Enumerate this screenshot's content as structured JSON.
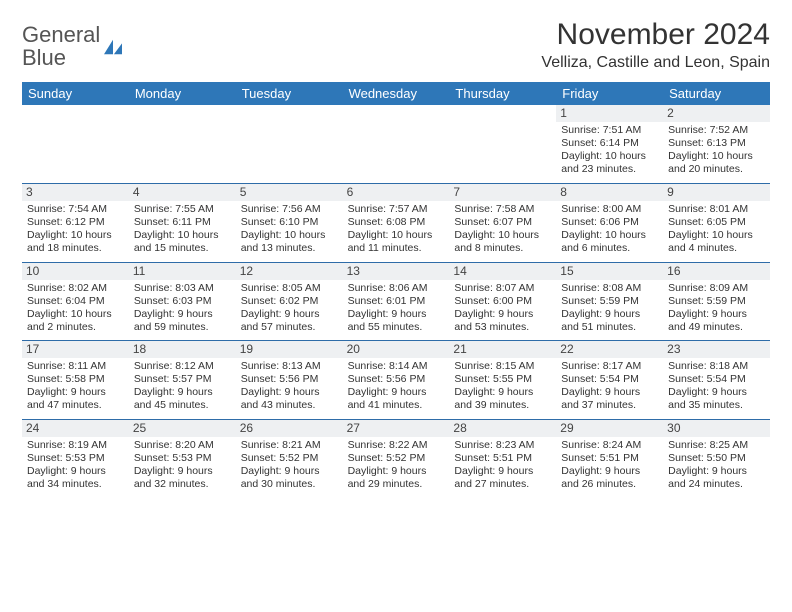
{
  "logo": {
    "word1": "General",
    "word2": "Blue"
  },
  "title": "November 2024",
  "location": "Velliza, Castille and Leon, Spain",
  "colors": {
    "header_bg": "#2e77b8",
    "header_text": "#ffffff",
    "border": "#2e6ca8",
    "daynum_bg": "#eef0f2",
    "text": "#333333",
    "logo_gray": "#555555",
    "logo_blue": "#2e77b8",
    "page_bg": "#ffffff"
  },
  "typography": {
    "title_fontsize": 30,
    "location_fontsize": 16,
    "header_fontsize": 13,
    "cell_fontsize": 10.5,
    "daynum_fontsize": 12,
    "logo_fontsize": 22
  },
  "day_names": [
    "Sunday",
    "Monday",
    "Tuesday",
    "Wednesday",
    "Thursday",
    "Friday",
    "Saturday"
  ],
  "weeks": [
    [
      null,
      null,
      null,
      null,
      null,
      {
        "n": "1",
        "sr": "Sunrise: 7:51 AM",
        "ss": "Sunset: 6:14 PM",
        "d1": "Daylight: 10 hours",
        "d2": "and 23 minutes."
      },
      {
        "n": "2",
        "sr": "Sunrise: 7:52 AM",
        "ss": "Sunset: 6:13 PM",
        "d1": "Daylight: 10 hours",
        "d2": "and 20 minutes."
      }
    ],
    [
      {
        "n": "3",
        "sr": "Sunrise: 7:54 AM",
        "ss": "Sunset: 6:12 PM",
        "d1": "Daylight: 10 hours",
        "d2": "and 18 minutes."
      },
      {
        "n": "4",
        "sr": "Sunrise: 7:55 AM",
        "ss": "Sunset: 6:11 PM",
        "d1": "Daylight: 10 hours",
        "d2": "and 15 minutes."
      },
      {
        "n": "5",
        "sr": "Sunrise: 7:56 AM",
        "ss": "Sunset: 6:10 PM",
        "d1": "Daylight: 10 hours",
        "d2": "and 13 minutes."
      },
      {
        "n": "6",
        "sr": "Sunrise: 7:57 AM",
        "ss": "Sunset: 6:08 PM",
        "d1": "Daylight: 10 hours",
        "d2": "and 11 minutes."
      },
      {
        "n": "7",
        "sr": "Sunrise: 7:58 AM",
        "ss": "Sunset: 6:07 PM",
        "d1": "Daylight: 10 hours",
        "d2": "and 8 minutes."
      },
      {
        "n": "8",
        "sr": "Sunrise: 8:00 AM",
        "ss": "Sunset: 6:06 PM",
        "d1": "Daylight: 10 hours",
        "d2": "and 6 minutes."
      },
      {
        "n": "9",
        "sr": "Sunrise: 8:01 AM",
        "ss": "Sunset: 6:05 PM",
        "d1": "Daylight: 10 hours",
        "d2": "and 4 minutes."
      }
    ],
    [
      {
        "n": "10",
        "sr": "Sunrise: 8:02 AM",
        "ss": "Sunset: 6:04 PM",
        "d1": "Daylight: 10 hours",
        "d2": "and 2 minutes."
      },
      {
        "n": "11",
        "sr": "Sunrise: 8:03 AM",
        "ss": "Sunset: 6:03 PM",
        "d1": "Daylight: 9 hours",
        "d2": "and 59 minutes."
      },
      {
        "n": "12",
        "sr": "Sunrise: 8:05 AM",
        "ss": "Sunset: 6:02 PM",
        "d1": "Daylight: 9 hours",
        "d2": "and 57 minutes."
      },
      {
        "n": "13",
        "sr": "Sunrise: 8:06 AM",
        "ss": "Sunset: 6:01 PM",
        "d1": "Daylight: 9 hours",
        "d2": "and 55 minutes."
      },
      {
        "n": "14",
        "sr": "Sunrise: 8:07 AM",
        "ss": "Sunset: 6:00 PM",
        "d1": "Daylight: 9 hours",
        "d2": "and 53 minutes."
      },
      {
        "n": "15",
        "sr": "Sunrise: 8:08 AM",
        "ss": "Sunset: 5:59 PM",
        "d1": "Daylight: 9 hours",
        "d2": "and 51 minutes."
      },
      {
        "n": "16",
        "sr": "Sunrise: 8:09 AM",
        "ss": "Sunset: 5:59 PM",
        "d1": "Daylight: 9 hours",
        "d2": "and 49 minutes."
      }
    ],
    [
      {
        "n": "17",
        "sr": "Sunrise: 8:11 AM",
        "ss": "Sunset: 5:58 PM",
        "d1": "Daylight: 9 hours",
        "d2": "and 47 minutes."
      },
      {
        "n": "18",
        "sr": "Sunrise: 8:12 AM",
        "ss": "Sunset: 5:57 PM",
        "d1": "Daylight: 9 hours",
        "d2": "and 45 minutes."
      },
      {
        "n": "19",
        "sr": "Sunrise: 8:13 AM",
        "ss": "Sunset: 5:56 PM",
        "d1": "Daylight: 9 hours",
        "d2": "and 43 minutes."
      },
      {
        "n": "20",
        "sr": "Sunrise: 8:14 AM",
        "ss": "Sunset: 5:56 PM",
        "d1": "Daylight: 9 hours",
        "d2": "and 41 minutes."
      },
      {
        "n": "21",
        "sr": "Sunrise: 8:15 AM",
        "ss": "Sunset: 5:55 PM",
        "d1": "Daylight: 9 hours",
        "d2": "and 39 minutes."
      },
      {
        "n": "22",
        "sr": "Sunrise: 8:17 AM",
        "ss": "Sunset: 5:54 PM",
        "d1": "Daylight: 9 hours",
        "d2": "and 37 minutes."
      },
      {
        "n": "23",
        "sr": "Sunrise: 8:18 AM",
        "ss": "Sunset: 5:54 PM",
        "d1": "Daylight: 9 hours",
        "d2": "and 35 minutes."
      }
    ],
    [
      {
        "n": "24",
        "sr": "Sunrise: 8:19 AM",
        "ss": "Sunset: 5:53 PM",
        "d1": "Daylight: 9 hours",
        "d2": "and 34 minutes."
      },
      {
        "n": "25",
        "sr": "Sunrise: 8:20 AM",
        "ss": "Sunset: 5:53 PM",
        "d1": "Daylight: 9 hours",
        "d2": "and 32 minutes."
      },
      {
        "n": "26",
        "sr": "Sunrise: 8:21 AM",
        "ss": "Sunset: 5:52 PM",
        "d1": "Daylight: 9 hours",
        "d2": "and 30 minutes."
      },
      {
        "n": "27",
        "sr": "Sunrise: 8:22 AM",
        "ss": "Sunset: 5:52 PM",
        "d1": "Daylight: 9 hours",
        "d2": "and 29 minutes."
      },
      {
        "n": "28",
        "sr": "Sunrise: 8:23 AM",
        "ss": "Sunset: 5:51 PM",
        "d1": "Daylight: 9 hours",
        "d2": "and 27 minutes."
      },
      {
        "n": "29",
        "sr": "Sunrise: 8:24 AM",
        "ss": "Sunset: 5:51 PM",
        "d1": "Daylight: 9 hours",
        "d2": "and 26 minutes."
      },
      {
        "n": "30",
        "sr": "Sunrise: 8:25 AM",
        "ss": "Sunset: 5:50 PM",
        "d1": "Daylight: 9 hours",
        "d2": "and 24 minutes."
      }
    ]
  ]
}
